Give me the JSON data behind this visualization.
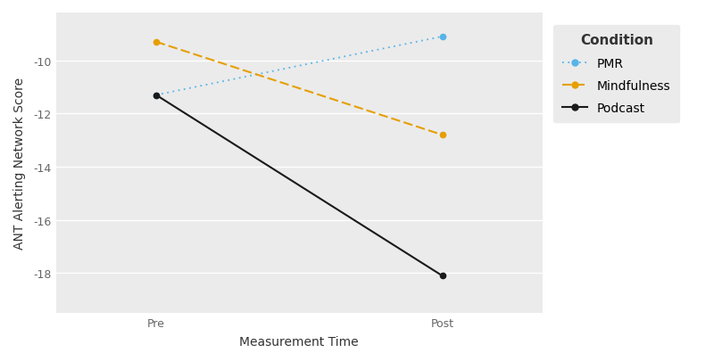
{
  "conditions": [
    "PMR",
    "Mindfulness",
    "Podcast"
  ],
  "x_labels": [
    "Pre",
    "Post"
  ],
  "x_positions": [
    0,
    1
  ],
  "PMR": {
    "pre": -11.3,
    "post": -9.1,
    "color": "#56B4E9"
  },
  "Mindfulness": {
    "pre": -9.3,
    "post": -12.8,
    "color": "#E69F00"
  },
  "Podcast": {
    "pre": -11.3,
    "post": -18.1,
    "color": "#1a1a1a"
  },
  "ylabel": "ANT Alerting Network Score",
  "xlabel": "Measurement Time",
  "legend_title": "Condition",
  "ylim": [
    -19.5,
    -8.2
  ],
  "yticks": [
    -18,
    -16,
    -14,
    -12,
    -10
  ],
  "plot_bg_color": "#EBEBEB",
  "fig_bg_color": "#FFFFFF",
  "legend_bg": "#EBEBEB",
  "xlabel_color": "#333333",
  "ylabel_color": "#333333",
  "tick_color": "#666666",
  "axis_fontsize": 10,
  "tick_fontsize": 9,
  "legend_fontsize": 10,
  "legend_title_fontsize": 11
}
